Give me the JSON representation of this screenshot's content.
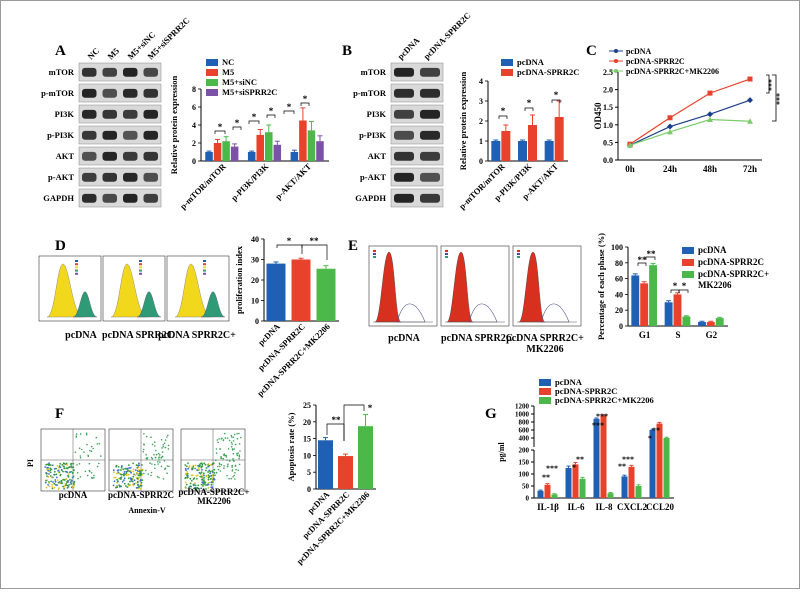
{
  "panels": {
    "A": {
      "letter": "A",
      "lanes": [
        "NC",
        "M5",
        "M5+siNC",
        "M5+siSPRR2C"
      ],
      "blots": [
        "mTOR",
        "p-mTOR",
        "PI3K",
        "p-PI3K",
        "AKT",
        "p-AKT",
        "GAPDH"
      ]
    },
    "B": {
      "letter": "B",
      "lanes": [
        "pcDNA",
        "pcDNA-SPRR2C"
      ],
      "blots": [
        "mTOR",
        "p-mTOR",
        "PI3K",
        "p-PI3K",
        "AKT",
        "p-AKT",
        "GAPDH"
      ]
    },
    "C": {
      "letter": "C"
    },
    "D": {
      "letter": "D",
      "flow_labels": [
        "pcDNA",
        "pcDNA SPRR2C",
        "pcDNA SPRR2C+"
      ]
    },
    "E": {
      "letter": "E",
      "flow_labels": [
        "pcDNA",
        "pcDNA SPRR2C",
        "pcDNA SPRR2C+",
        "MK2206"
      ]
    },
    "F": {
      "letter": "F",
      "flow_labels": [
        "pcDNA",
        "pcDNA-SPRR2C",
        "pcDNA-SPRR2C+",
        "MK2206"
      ],
      "axis_pi": "PI",
      "axis_annexin": "Annexin-V"
    },
    "G": {
      "letter": "G"
    }
  },
  "colors": {
    "blue": "#1f5fb4",
    "red": "#e8412c",
    "green": "#4cb84a",
    "purple": "#7b52a8",
    "navy": "#1b3e8c",
    "lightgreen": "#7ccb6b"
  },
  "chart_data": [
    {
      "id": "A",
      "type": "bar",
      "ylabel": "Relative protein expression",
      "ylim": [
        0,
        8
      ],
      "yticks": [
        0,
        2,
        4,
        6,
        8
      ],
      "categories": [
        "p-mTOR/mTOR",
        "p-PI3K/PI3K",
        "p-AKT/AKT"
      ],
      "series": [
        {
          "name": "NC",
          "color": "blue",
          "values": [
            1.0,
            1.0,
            1.0
          ],
          "err": [
            0.1,
            0.1,
            0.2
          ]
        },
        {
          "name": "M5",
          "color": "red",
          "values": [
            2.0,
            2.9,
            4.5
          ],
          "err": [
            0.4,
            0.6,
            1.4
          ]
        },
        {
          "name": "M5+siNC",
          "color": "green",
          "values": [
            2.2,
            3.2,
            3.4
          ],
          "err": [
            0.5,
            0.8,
            1.0
          ]
        },
        {
          "name": "M5+siSPRR2C",
          "color": "purple",
          "values": [
            1.6,
            1.8,
            2.2
          ],
          "err": [
            0.3,
            0.4,
            0.6
          ]
        }
      ],
      "annotations": [
        "*",
        "*",
        "*",
        "*",
        "*",
        "*"
      ],
      "legend": "top-left"
    },
    {
      "id": "B",
      "type": "bar",
      "ylabel": "Relative protein expression",
      "ylim": [
        0,
        4
      ],
      "yticks": [
        0,
        1,
        2,
        3,
        4
      ],
      "categories": [
        "p-mTOR/mTOR",
        "p-PI3K/PI3K",
        "p-AKT/AKT"
      ],
      "series": [
        {
          "name": "pcDNA",
          "color": "blue",
          "values": [
            1.0,
            1.0,
            1.0
          ],
          "err": [
            0.05,
            0.05,
            0.05
          ]
        },
        {
          "name": "pcDNA-SPRR2C",
          "color": "red",
          "values": [
            1.5,
            1.8,
            2.2
          ],
          "err": [
            0.3,
            0.5,
            0.8
          ]
        }
      ],
      "annotations": [
        "*",
        "*",
        "*"
      ],
      "legend": "top-left"
    },
    {
      "id": "C",
      "type": "line",
      "ylabel": "OD450",
      "ylim": [
        0,
        2.5
      ],
      "yticks": [
        0.0,
        0.5,
        1.0,
        1.5,
        2.0,
        2.5
      ],
      "categories": [
        "0h",
        "24h",
        "48h",
        "72h"
      ],
      "series": [
        {
          "name": "pcDNA",
          "color": "navy",
          "marker": "diamond",
          "values": [
            0.42,
            0.95,
            1.3,
            1.7
          ]
        },
        {
          "name": "pcDNA-SPRR2C",
          "color": "red",
          "marker": "square",
          "values": [
            0.45,
            1.2,
            1.9,
            2.3
          ]
        },
        {
          "name": "pcDNA-SPRR2C+MK2206",
          "color": "lightgreen",
          "marker": "triangle",
          "values": [
            0.42,
            0.8,
            1.15,
            1.1
          ]
        }
      ],
      "annotations": [
        "***",
        "***"
      ],
      "legend": "top-left"
    },
    {
      "id": "D",
      "type": "bar",
      "ylabel": "proliferation index",
      "ylim": [
        0,
        40
      ],
      "yticks": [
        0,
        10,
        20,
        30,
        40
      ],
      "categories": [
        "pcDNA",
        "pcDNA-SPRR2C",
        "pcDNA-SPRR2C+MK2206"
      ],
      "series": [
        {
          "name": "",
          "colors": [
            "blue",
            "red",
            "green"
          ],
          "values": [
            28,
            30,
            25.5
          ],
          "err": [
            0.8,
            0.6,
            1.5
          ]
        }
      ],
      "annotations": [
        "*",
        "**"
      ]
    },
    {
      "id": "E",
      "type": "bar",
      "ylabel": "Percentage of each phase (%)",
      "ylim": [
        0,
        100
      ],
      "yticks": [
        0,
        20,
        40,
        60,
        80,
        100
      ],
      "categories": [
        "G1",
        "S",
        "G2"
      ],
      "series": [
        {
          "name": "pcDNA",
          "color": "blue",
          "values": [
            64,
            30,
            5
          ],
          "err": [
            2,
            2,
            1
          ]
        },
        {
          "name": "pcDNA-SPRR2C",
          "color": "red",
          "values": [
            54,
            40,
            5
          ],
          "err": [
            2,
            2,
            1
          ]
        },
        {
          "name": "pcDNA-SPRR2C+ MK2206",
          "color": "green",
          "values": [
            77,
            12,
            10
          ],
          "err": [
            2,
            1,
            1
          ]
        }
      ],
      "annotations": [
        "**",
        "**",
        "*",
        "*"
      ],
      "legend": "right"
    },
    {
      "id": "F",
      "type": "bar",
      "ylabel": "Apoptosis rate (%)",
      "ylim": [
        0,
        25
      ],
      "yticks": [
        0,
        5,
        10,
        15,
        20,
        25
      ],
      "categories": [
        "pcDNA",
        "pcDNA-SPRR2C",
        "pcDNA-SPRR2C+MK2206"
      ],
      "series": [
        {
          "name": "",
          "colors": [
            "blue",
            "red",
            "green"
          ],
          "values": [
            14.5,
            9.8,
            18.7
          ],
          "err": [
            0.8,
            0.6,
            3.5
          ]
        }
      ],
      "annotations": [
        "**",
        "*"
      ]
    },
    {
      "id": "G",
      "type": "bar",
      "ylabel": "pg/ml",
      "ylim": [
        0,
        1200
      ],
      "yticks": [
        0,
        50,
        100,
        150,
        200,
        400,
        600,
        800,
        1000,
        1200
      ],
      "categories": [
        "IL-1β",
        "IL-6",
        "IL-8",
        "CXCL2",
        "CCL20"
      ],
      "series": [
        {
          "name": "pcDNA",
          "color": "blue",
          "values": [
            30,
            125,
            880,
            90,
            600
          ],
          "err": [
            3,
            8,
            20,
            5,
            20
          ]
        },
        {
          "name": "pcDNA-SPRR2C",
          "color": "red",
          "values": [
            55,
            140,
            960,
            130,
            760
          ],
          "err": [
            5,
            8,
            20,
            6,
            30
          ]
        },
        {
          "name": "pcDNA-SPRR2C+MK2206",
          "color": "green",
          "values": [
            15,
            80,
            20,
            50,
            400
          ],
          "err": [
            3,
            6,
            3,
            5,
            20
          ]
        }
      ],
      "annotations": [
        "**",
        "***",
        "*",
        "**",
        "***",
        "***",
        "**",
        "***",
        "*",
        "**"
      ],
      "legend": "top-left"
    }
  ]
}
